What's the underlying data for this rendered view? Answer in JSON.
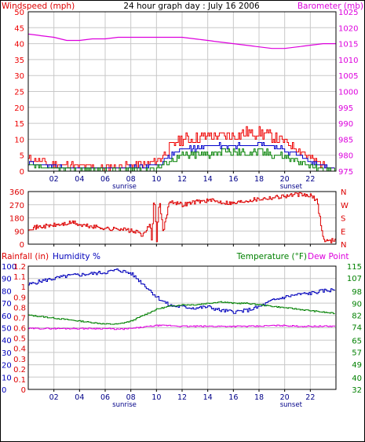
{
  "colors": {
    "wind": "#ee0000",
    "wind_avg": "#0000cc",
    "wind_low": "#008000",
    "barometer": "#dd00dd",
    "direction": "#dd0000",
    "humidity": "#0000bb",
    "rain": "#dd0000",
    "temperature": "#008000",
    "dewpoint": "#dd00dd",
    "grid": "#c8c8c8",
    "frame": "#000000"
  },
  "x_ticks": [
    "02",
    "04",
    "06",
    "08",
    "10",
    "12",
    "14",
    "16",
    "18",
    "20",
    "22"
  ],
  "x_tick_hours": [
    2,
    4,
    6,
    8,
    10,
    12,
    14,
    16,
    18,
    20,
    22
  ],
  "sun": {
    "sunrise_label": "sunrise",
    "sunset_label": "sunset",
    "sunrise_hour": 7.5,
    "sunset_hour": 20.5
  },
  "chart_data": [
    {
      "type": "line",
      "title": "24 hour graph day : July 16 2006",
      "left_label": "Windspeed (mph)",
      "right_label": "Barometer (mb)",
      "y_left": {
        "ticks": [
          0,
          5,
          10,
          15,
          20,
          25,
          30,
          35,
          40,
          45,
          50
        ],
        "lim": [
          0,
          50
        ]
      },
      "y_right": {
        "ticks": [
          975,
          980,
          985,
          990,
          995,
          1000,
          1005,
          1010,
          1015,
          1020,
          1025
        ],
        "lim": [
          975,
          1025
        ]
      },
      "xlim": [
        0,
        24
      ],
      "series": [
        {
          "name": "Windspeed (mph)",
          "axis": "left",
          "style": "gust",
          "x": [
            0,
            1,
            2,
            3,
            4,
            5,
            6,
            7,
            8,
            9,
            10,
            10.5,
            11,
            11.5,
            12,
            13,
            14,
            15,
            16,
            17,
            18,
            19,
            20,
            21,
            22,
            23,
            24
          ],
          "y": [
            4,
            3,
            2,
            2,
            1.5,
            1.5,
            1,
            1.5,
            2,
            2,
            3,
            5,
            7,
            9,
            10,
            10,
            11,
            11,
            11,
            12,
            12,
            11,
            9,
            7,
            4,
            2,
            1
          ]
        },
        {
          "axis": "left",
          "style": "avg",
          "x": [
            0,
            1,
            2,
            3,
            4,
            5,
            6,
            7,
            8,
            9,
            10,
            10.5,
            11,
            11.5,
            12,
            13,
            14,
            15,
            16,
            17,
            18,
            19,
            20,
            21,
            22,
            23,
            24
          ],
          "y": [
            2.5,
            2,
            1.5,
            1,
            1,
            1,
            0.8,
            1,
            1.5,
            1.5,
            2,
            3,
            4.5,
            6,
            7,
            7,
            8,
            8,
            8,
            8.5,
            8.5,
            8,
            6.5,
            5,
            3,
            1.5,
            0.8
          ]
        },
        {
          "axis": "left",
          "style": "low",
          "x": [
            0,
            1,
            2,
            3,
            4,
            5,
            6,
            7,
            8,
            9,
            10,
            10.5,
            11,
            11.5,
            12,
            13,
            14,
            15,
            16,
            17,
            18,
            19,
            20,
            21,
            22,
            23,
            24
          ],
          "y": [
            1.5,
            1,
            0.5,
            0.3,
            0.3,
            0.3,
            0.2,
            0.3,
            0.5,
            0.5,
            1,
            2,
            3,
            4,
            5,
            5,
            5.5,
            6,
            6,
            6,
            6,
            5.5,
            4.5,
            3,
            1.5,
            0.5,
            0.2
          ]
        },
        {
          "name": "Barometer (mb)",
          "axis": "right",
          "style": "smooth",
          "x": [
            0,
            1,
            2,
            3,
            4,
            5,
            6,
            7,
            8,
            9,
            10,
            11,
            12,
            13,
            14,
            15,
            16,
            17,
            18,
            19,
            20,
            21,
            22,
            23,
            24
          ],
          "y": [
            1018,
            1017.5,
            1017,
            1016,
            1016,
            1016.5,
            1016.5,
            1017,
            1017,
            1017,
            1017,
            1017,
            1017,
            1016.5,
            1016,
            1015.5,
            1015,
            1014.5,
            1014,
            1013.5,
            1013.5,
            1014,
            1014.5,
            1015,
            1015
          ]
        }
      ]
    },
    {
      "type": "line",
      "title": "",
      "y_left": {
        "ticks": [
          0,
          90,
          180,
          270,
          360
        ],
        "lim": [
          0,
          360
        ]
      },
      "y_right": {
        "ticks": [
          "N",
          "E",
          "S",
          "W",
          "N"
        ]
      },
      "xlim": [
        0,
        24
      ],
      "series": [
        {
          "axis": "left",
          "x": [
            0,
            1,
            2,
            3,
            3.5,
            4,
            5,
            6,
            6.5,
            7,
            8,
            8.5,
            9,
            9.5,
            9.6,
            9.8,
            10,
            10.2,
            10.5,
            11,
            12,
            12.5,
            13,
            14,
            15,
            16,
            17,
            18,
            19,
            20,
            21,
            22,
            22.5,
            23,
            23.5,
            24
          ],
          "y": [
            110,
            120,
            130,
            140,
            150,
            130,
            120,
            110,
            100,
            110,
            90,
            80,
            60,
            150,
            20,
            330,
            30,
            300,
            80,
            300,
            270,
            280,
            290,
            300,
            290,
            280,
            300,
            310,
            320,
            330,
            340,
            330,
            300,
            30,
            20,
            40
          ]
        }
      ]
    },
    {
      "type": "line",
      "title": "",
      "left_labels": [
        "Rainfall (in)",
        "Humidity %"
      ],
      "right_labels": [
        "Temperature (°F)",
        "Dew Point"
      ],
      "y_humidity": {
        "ticks": [
          0,
          10,
          20,
          30,
          40,
          50,
          60,
          70,
          80,
          90,
          100
        ],
        "lim": [
          0,
          100
        ]
      },
      "y_rain": {
        "ticks": [
          0,
          0.1,
          0.2,
          0.3,
          0.4,
          0.5,
          0.6,
          0.7,
          0.8,
          0.9,
          1,
          1.1,
          1.2
        ],
        "tick_labels": [
          "0",
          "0.1",
          "0.2",
          "0.3",
          "0.4",
          "0.5",
          "0.6",
          "0.7",
          "0.8",
          "0.9",
          "1",
          "1.1",
          "1.2"
        ],
        "lim": [
          0,
          1.2
        ]
      },
      "y_temp": {
        "ticks": [
          32,
          40,
          49,
          57,
          65,
          74,
          82,
          90,
          98,
          107,
          115
        ],
        "lim": [
          32,
          115
        ]
      },
      "xlim": [
        0,
        24
      ],
      "series": [
        {
          "name": "Humidity %",
          "axis": "humidity",
          "x": [
            0,
            1,
            2,
            3,
            4,
            5,
            6,
            7,
            8,
            9,
            10,
            11,
            12,
            13,
            14,
            15,
            16,
            17,
            18,
            19,
            20,
            21,
            22,
            23,
            24
          ],
          "y": [
            85,
            88,
            90,
            92,
            93,
            94,
            95,
            97,
            94,
            85,
            75,
            68,
            67,
            66,
            67,
            64,
            63,
            64,
            67,
            72,
            75,
            77,
            78,
            80,
            81
          ]
        },
        {
          "name": "Rainfall (in)",
          "axis": "rain",
          "x": [
            0,
            24
          ],
          "y": [
            0,
            0
          ]
        },
        {
          "name": "Temperature (°F)",
          "axis": "temp",
          "x": [
            0,
            1,
            2,
            3,
            4,
            5,
            6,
            7,
            8,
            9,
            10,
            11,
            12,
            13,
            14,
            15,
            16,
            17,
            18,
            19,
            20,
            21,
            22,
            23,
            24
          ],
          "y": [
            82,
            81,
            80,
            79,
            78,
            77,
            76,
            76,
            78,
            82,
            86,
            88,
            89,
            89,
            90,
            91,
            90,
            90,
            89,
            88,
            87,
            86,
            85,
            84,
            83
          ]
        },
        {
          "name": "Dew Point",
          "axis": "temp",
          "x": [
            0,
            1,
            2,
            3,
            4,
            5,
            6,
            7,
            8,
            9,
            10,
            11,
            12,
            13,
            14,
            15,
            16,
            17,
            18,
            19,
            20,
            21,
            22,
            23,
            24
          ],
          "y": [
            73,
            73,
            73,
            73,
            73,
            73,
            73,
            72.5,
            73,
            74,
            75,
            75,
            74.5,
            74.5,
            74.5,
            74.5,
            74.5,
            74.5,
            74.5,
            75,
            75,
            74.5,
            74.5,
            74.5,
            74.5
          ]
        }
      ]
    }
  ]
}
